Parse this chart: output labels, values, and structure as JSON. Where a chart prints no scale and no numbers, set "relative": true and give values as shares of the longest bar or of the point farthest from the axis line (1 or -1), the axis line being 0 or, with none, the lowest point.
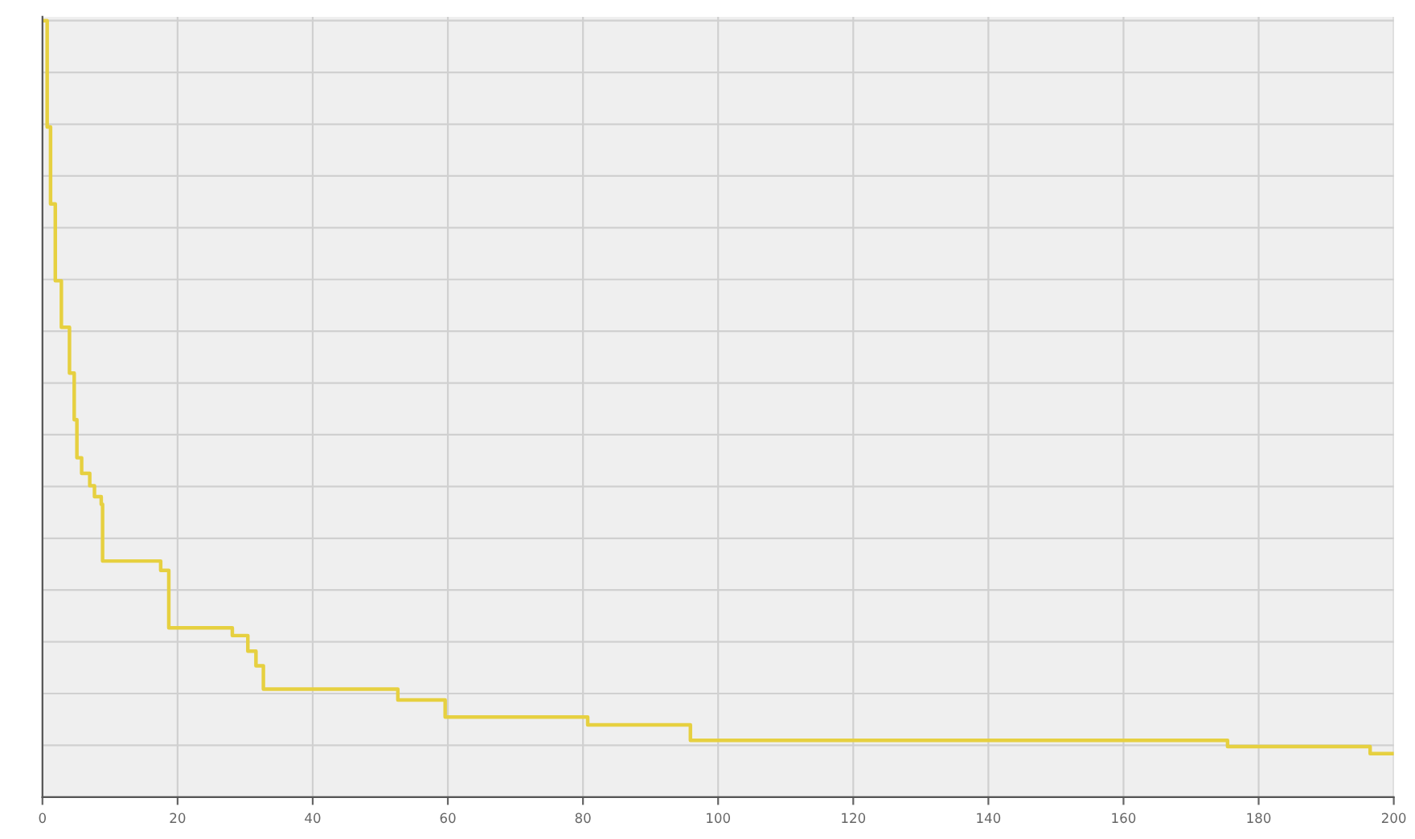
{
  "chart_data": {
    "type": "step",
    "relative": true,
    "grid": true,
    "marker": "none",
    "line_style": "solid",
    "x": [
      0,
      0.7,
      1.2,
      1.9,
      2.8,
      4.0,
      4.7,
      5.1,
      5.8,
      7.0,
      7.7,
      8.7,
      8.9,
      17.5,
      18.7,
      28.1,
      30.4,
      31.6,
      32.7,
      52.6,
      59.6,
      80.7,
      95.9,
      175.4,
      196.5,
      200
    ],
    "series": [
      {
        "color": "#e6d040",
        "values": [
          1.0,
          0.863,
          0.764,
          0.665,
          0.605,
          0.546,
          0.486,
          0.437,
          0.417,
          0.401,
          0.387,
          0.377,
          0.304,
          0.292,
          0.218,
          0.208,
          0.188,
          0.169,
          0.139,
          0.125,
          0.103,
          0.093,
          0.073,
          0.065,
          0.056,
          0.056
        ]
      }
    ],
    "xlim": [
      0,
      200
    ],
    "xticks": [
      0,
      20,
      40,
      60,
      80,
      100,
      120,
      140,
      160,
      180,
      200
    ]
  }
}
